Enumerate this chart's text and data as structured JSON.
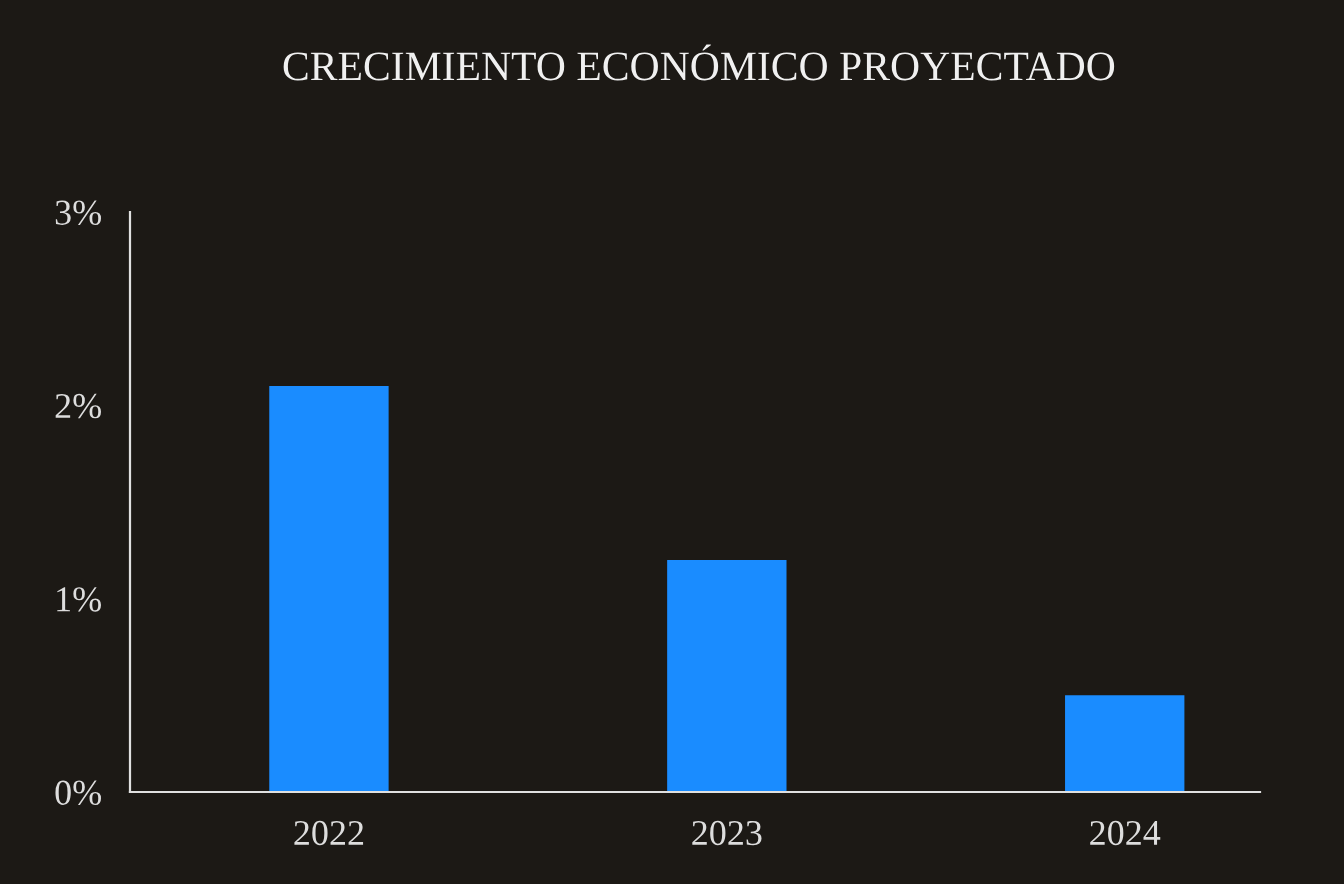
{
  "chart_data": {
    "type": "bar",
    "title": "CRECIMIENTO ECONÓMICO PROYECTADO",
    "categories": [
      "2022",
      "2023",
      "2024"
    ],
    "values": [
      2.1,
      1.2,
      0.5
    ],
    "color": "#1a8cff",
    "ylim": [
      0,
      3
    ],
    "yticks": [
      {
        "value": 0,
        "label": "0%"
      },
      {
        "value": 1,
        "label": "1%"
      },
      {
        "value": 2,
        "label": "2%"
      },
      {
        "value": 3,
        "label": "3%"
      }
    ],
    "grid": false,
    "legend": false
  }
}
